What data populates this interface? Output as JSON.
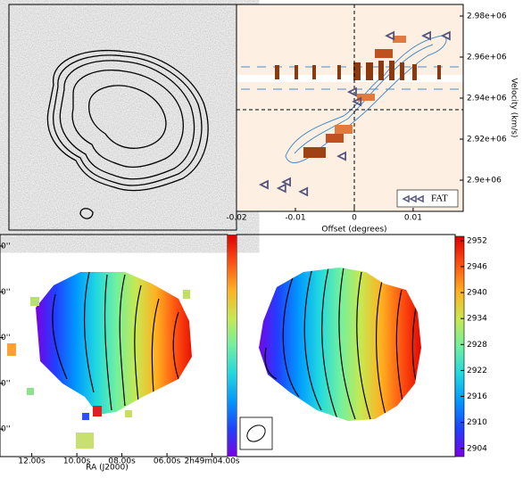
{
  "chart_data": [
    {
      "type": "scatter",
      "xlabel": "Offset (degrees)",
      "ylabel": "Velocity (km/s)",
      "xlim": [
        -0.02,
        0.0185
      ],
      "ylim": [
        2884800,
        2985650
      ],
      "xticks": [
        -0.02,
        -0.01,
        0,
        0.01
      ],
      "yticks": [
        {
          "value": 2900000,
          "label": "2.9e+06"
        },
        {
          "value": 2920000,
          "label": "2.92e+06"
        },
        {
          "value": 2940000,
          "label": "2.94e+06"
        },
        {
          "value": 2960000,
          "label": "2.96e+06"
        },
        {
          "value": 2980000,
          "label": "2.98e+06"
        }
      ],
      "legend_loc": "lower right",
      "series": [
        {
          "name": "FAT",
          "color": "#55557f",
          "x": [
            0.0061,
            0.0123,
            0.0156,
            -0.0003,
            0.0005,
            -0.0021,
            -0.0115,
            -0.0153,
            -0.0123,
            -0.0086
          ],
          "y": [
            2970400,
            2970400,
            2970400,
            2943000,
            2938300,
            2911700,
            2899100,
            2897800,
            2896100,
            2894400
          ]
        }
      ]
    },
    {
      "type": "image",
      "xlabel": "RA (J2000)",
      "xlim": [
        13.41,
        3.31
      ],
      "xticks": [
        {
          "value": 12,
          "label": "12.00s"
        },
        {
          "value": 10,
          "label": "10.00s"
        },
        {
          "value": 8,
          "label": "08.00s"
        },
        {
          "value": 6,
          "label": "06.00s"
        },
        {
          "value": 4,
          "label": "2h49m04.00s"
        }
      ],
      "ytick_labels": [
        "0''",
        "0''",
        "0''",
        "0''",
        "0''"
      ]
    },
    {
      "type": "colorbar",
      "ylim": [
        2902.1,
        2953
      ],
      "yticks": [
        2904,
        2910,
        2916,
        2922,
        2928,
        2934,
        2940,
        2946,
        2952
      ],
      "colors": [
        "#7a00e6",
        "#2040ff",
        "#0098ff",
        "#20d8e0",
        "#70f0a0",
        "#c8e850",
        "#ffb020",
        "#ff5010",
        "#e00000"
      ]
    }
  ]
}
